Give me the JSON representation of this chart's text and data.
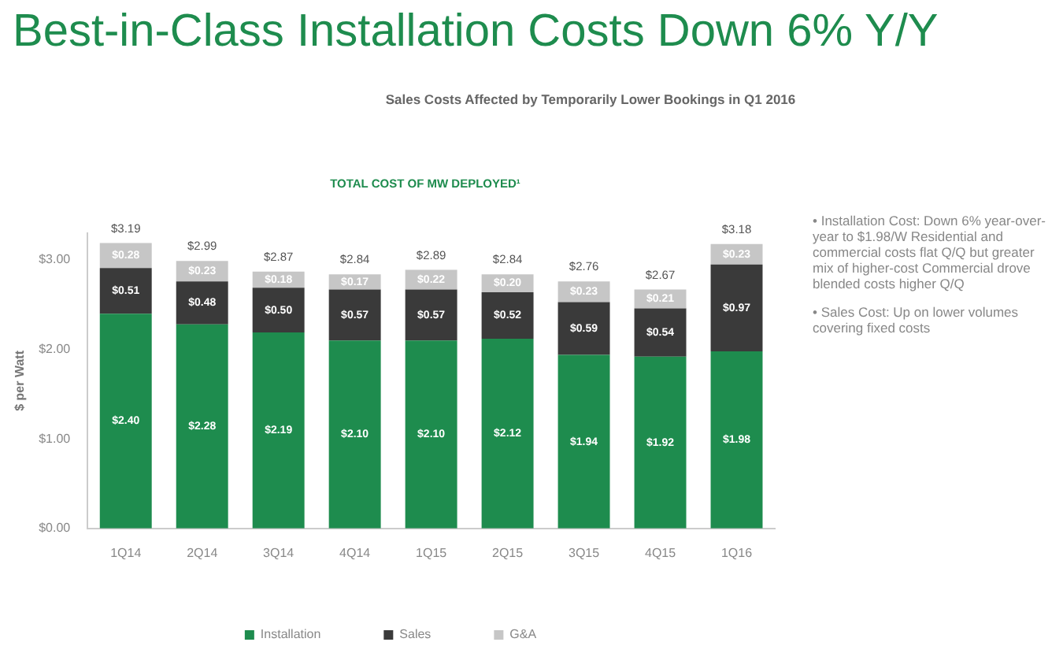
{
  "chart_data": {
    "type": "bar",
    "title": "Best-in-Class Installation Costs Down 6% Y/Y",
    "subtitle": "Sales Costs Affected by Temporarily Lower Bookings in Q1 2016",
    "ylabel": "$ per Watt",
    "annotations": [
      "TOTAL COST OF MW DEPLOYED¹",
      "• Installation Cost: Down 6% year-over-year to $1.98/W Residential and commercial costs flat Q/Q but greater mix of higher-cost Commercial drove blended costs higher Q/Q",
      "• Sales Cost: Up on lower volumes covering fixed costs"
    ],
    "categories": [
      "1Q14",
      "2Q14",
      "3Q14",
      "4Q14",
      "1Q15",
      "2Q15",
      "3Q15",
      "4Q15",
      "1Q16"
    ],
    "stacked": true,
    "series": [
      {
        "name": "Installation",
        "color": "#1e8c4e",
        "values": [
          2.4,
          2.28,
          2.19,
          2.1,
          2.1,
          2.12,
          1.94,
          1.92,
          1.98
        ],
        "value_labels": [
          "$2.40",
          "$2.28",
          "$2.19",
          "$2.10",
          "$2.10",
          "$2.12",
          "$1.94",
          "$1.92",
          "$1.98"
        ]
      },
      {
        "name": "Sales",
        "color": "#3a3a3a",
        "values": [
          0.51,
          0.48,
          0.5,
          0.57,
          0.57,
          0.52,
          0.59,
          0.54,
          0.97
        ],
        "value_labels": [
          "$0.51",
          "$0.48",
          "$0.50",
          "$0.57",
          "$0.57",
          "$0.52",
          "$0.59",
          "$0.54",
          "$0.97"
        ]
      },
      {
        "name": "G&A",
        "color": "#c6c6c6",
        "values": [
          0.28,
          0.23,
          0.18,
          0.17,
          0.22,
          0.2,
          0.23,
          0.21,
          0.23
        ],
        "value_labels": [
          "$0.28",
          "$0.23",
          "$0.18",
          "$0.17",
          "$0.22",
          "$0.20",
          "$0.23",
          "$0.21",
          "$0.23"
        ]
      }
    ],
    "totals": [
      "$3.19",
      "$2.99",
      "$2.87",
      "$2.84",
      "$2.89",
      "$2.84",
      "$2.76",
      "$2.67",
      "$3.18"
    ],
    "ylim": [
      0,
      3.3
    ],
    "yticks": [
      {
        "value": 0,
        "label": "$0.00"
      },
      {
        "value": 1,
        "label": "$1.00"
      },
      {
        "value": 2,
        "label": "$2.00"
      },
      {
        "value": 3,
        "label": "$3.00"
      }
    ],
    "grid": false,
    "legend": "bottom"
  }
}
